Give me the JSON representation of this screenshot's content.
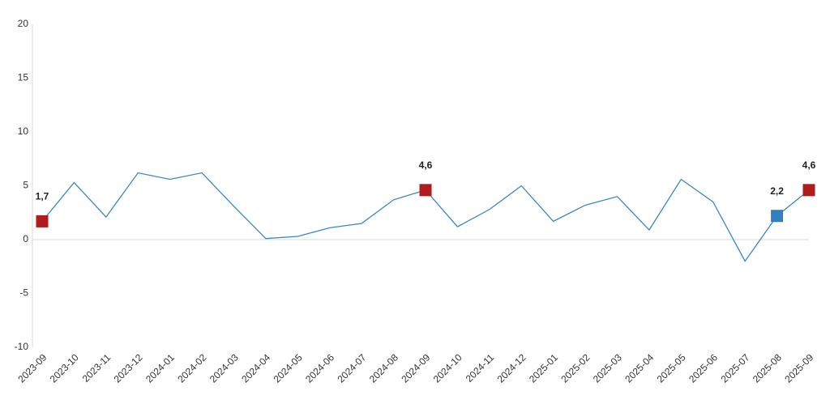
{
  "chart_data": {
    "type": "line",
    "categories": [
      "2023-09",
      "2023-10",
      "2023-11",
      "2023-12",
      "2024-01",
      "2024-02",
      "2024-03",
      "2024-04",
      "2024-05",
      "2024-06",
      "2024-07",
      "2024-08",
      "2024-09",
      "2024-10",
      "2024-11",
      "2024-12",
      "2025-01",
      "2025-02",
      "2025-03",
      "2025-04",
      "2025-05",
      "2025-06",
      "2025-07",
      "2025-08",
      "2025-09"
    ],
    "series": [
      {
        "color": "#3a87c4",
        "values": [
          1.7,
          5.3,
          2.1,
          6.2,
          5.6,
          6.2,
          3.1,
          0.1,
          0.3,
          1.1,
          1.5,
          3.7,
          4.6,
          1.2,
          2.8,
          5.0,
          1.7,
          3.2,
          4.0,
          0.9,
          5.6,
          3.5,
          -2.0,
          2.2,
          4.6
        ],
        "value_labels": [
          "1,7",
          null,
          null,
          null,
          null,
          null,
          null,
          null,
          null,
          null,
          null,
          null,
          "4,6",
          null,
          null,
          null,
          null,
          null,
          null,
          null,
          null,
          null,
          null,
          "2,2",
          "4,6"
        ],
        "marker_colors": [
          "#b01c1c",
          null,
          null,
          null,
          null,
          null,
          null,
          null,
          null,
          null,
          null,
          null,
          "#b01c1c",
          null,
          null,
          null,
          null,
          null,
          null,
          null,
          null,
          null,
          null,
          "#2f7fc1",
          "#b01c1c"
        ]
      }
    ],
    "ylim": [
      -10,
      20
    ],
    "yticks": [
      -10,
      -5,
      0,
      5,
      10,
      15,
      20
    ],
    "grid": false
  }
}
